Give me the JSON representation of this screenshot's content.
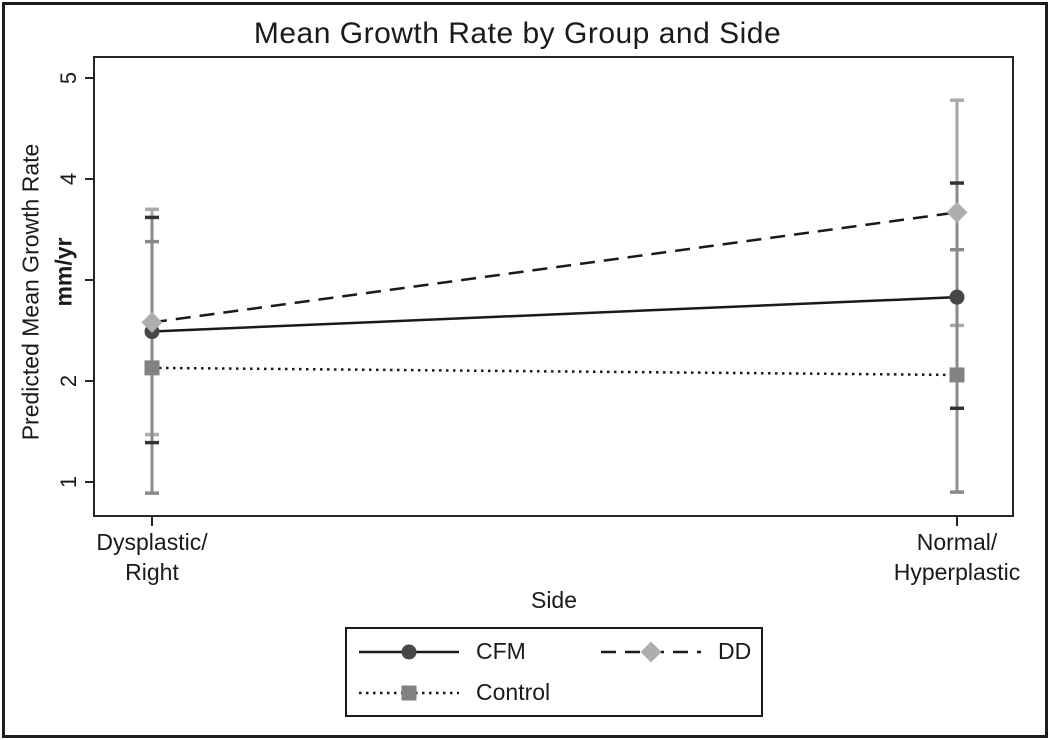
{
  "chart_data": {
    "type": "line",
    "title": "Mean Growth Rate by Group and Side",
    "xlabel": "Side",
    "ylabel": "Predicted Mean Growth Rate",
    "ylabel_units": "mm/yr",
    "categories": [
      "Dysplastic/Right",
      "Normal/Hyperplastic"
    ],
    "category_label_lines": [
      [
        "Dysplastic/",
        "Right"
      ],
      [
        "Normal/",
        "Hyperplastic"
      ]
    ],
    "yticks": [
      5,
      4,
      3,
      2,
      1
    ],
    "ytick_labels": [
      "5",
      "4",
      "",
      "2",
      "1"
    ],
    "ylim": [
      0.65,
      5.2
    ],
    "grid": false,
    "legend_position": "bottom",
    "axis_color": "#262626",
    "text_color": "#1a1a1a",
    "series": [
      {
        "name": "CFM",
        "marker": "circle",
        "marker_color": "#474747",
        "line_style": "solid",
        "line_color": "#1a1a1a",
        "bar_color": "#8a8a8a",
        "cap_color": "#333333",
        "values": [
          2.49,
          2.83
        ],
        "ci_low": [
          1.39,
          1.73
        ],
        "ci_high": [
          3.62,
          3.96
        ]
      },
      {
        "name": "DD",
        "marker": "diamond",
        "marker_color": "#aeaeae",
        "line_style": "dashed",
        "line_color": "#1a1a1a",
        "bar_color": "#a6a6a6",
        "cap_color": "#ababab",
        "values": [
          2.58,
          3.67
        ],
        "ci_low": [
          1.47,
          2.55
        ],
        "ci_high": [
          3.7,
          4.78
        ]
      },
      {
        "name": "Control",
        "marker": "square",
        "marker_color": "#828282",
        "line_style": "dotted",
        "line_color": "#1a1a1a",
        "bar_color": "#909090",
        "cap_color": "#8a8a8a",
        "values": [
          2.13,
          2.06
        ],
        "ci_low": [
          0.89,
          0.9
        ],
        "ci_high": [
          3.38,
          3.3
        ]
      }
    ]
  }
}
